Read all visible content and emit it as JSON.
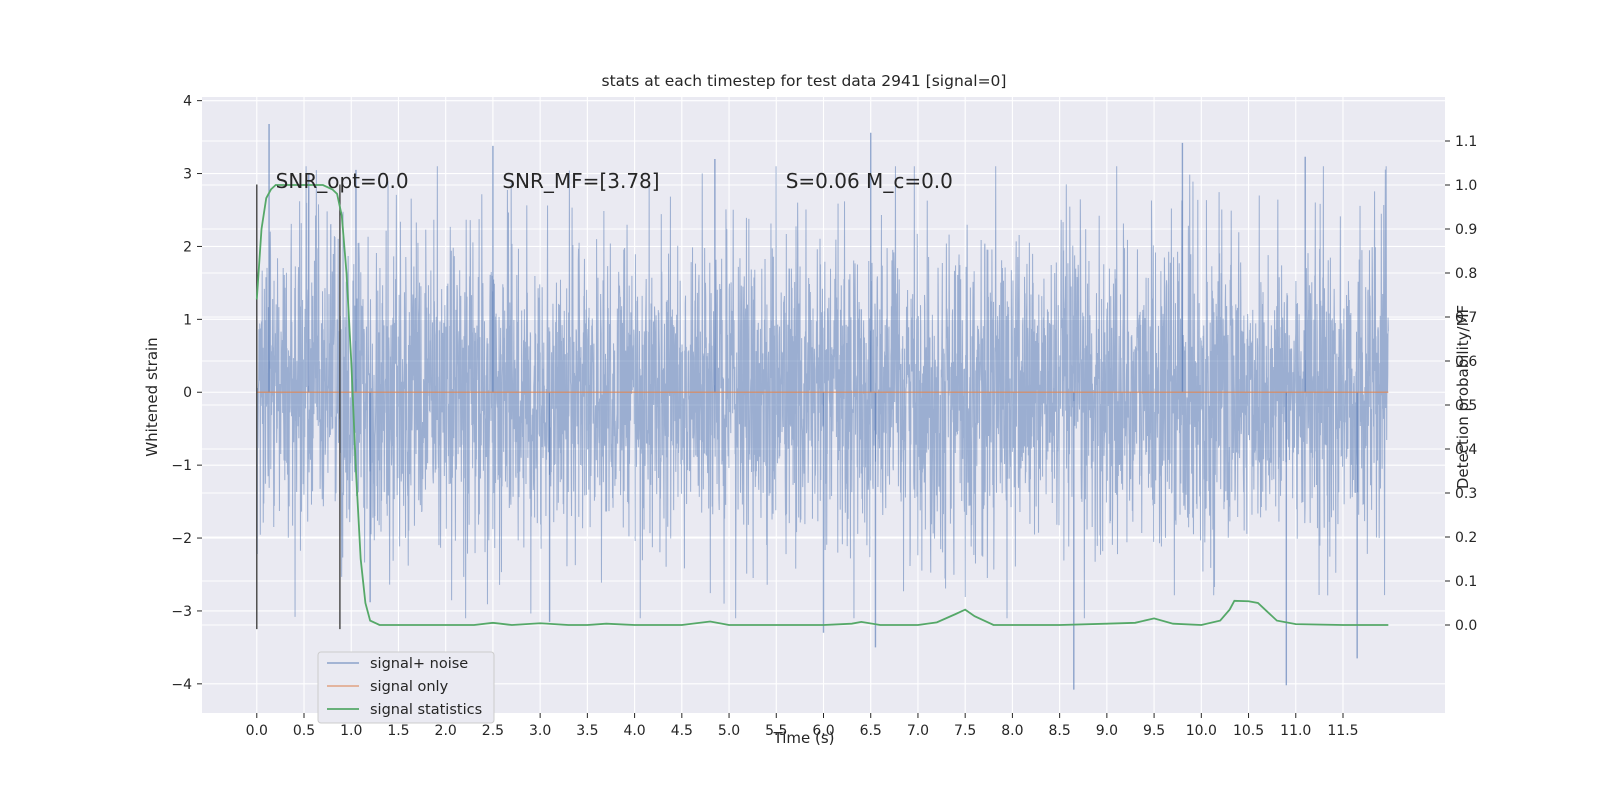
{
  "chart_data": {
    "type": "line",
    "title": "stats at each timestep for test data 2941 [signal=0]",
    "xlabel": "Time (s)",
    "ylabel": "Whitened strain",
    "y2label": "Detection probability/MF",
    "xlim": [
      -0.58,
      12.58
    ],
    "ylim": [
      -4.4,
      4.05
    ],
    "y2lim": [
      -0.2,
      1.2
    ],
    "grid": true,
    "legend_position": "lower-left",
    "x_ticks": [
      0.0,
      0.5,
      1.0,
      1.5,
      2.0,
      2.5,
      3.0,
      3.5,
      4.0,
      4.5,
      5.0,
      5.5,
      6.0,
      6.5,
      7.0,
      7.5,
      8.0,
      8.5,
      9.0,
      9.5,
      10.0,
      10.5,
      11.0,
      11.5
    ],
    "x_tick_labels": [
      "0.0",
      "0.5",
      "1.0",
      "1.5",
      "2.0",
      "2.5",
      "3.0",
      "3.5",
      "4.0",
      "4.5",
      "5.0",
      "5.5",
      "6.0",
      "6.5",
      "7.0",
      "7.5",
      "8.0",
      "8.5",
      "9.0",
      "9.5",
      "10.0",
      "10.5",
      "11.0",
      "11.5"
    ],
    "y_ticks": [
      -4,
      -3,
      -2,
      -1,
      0,
      1,
      2,
      3,
      4
    ],
    "y_tick_labels": [
      "−4",
      "−3",
      "−2",
      "−1",
      "0",
      "1",
      "2",
      "3",
      "4"
    ],
    "y2_ticks": [
      0.0,
      0.1,
      0.2,
      0.3,
      0.4,
      0.5,
      0.6,
      0.7,
      0.8,
      0.9,
      1.0,
      1.1
    ],
    "y2_tick_labels": [
      "0.0",
      "0.1",
      "0.2",
      "0.3",
      "0.4",
      "0.5",
      "0.6",
      "0.7",
      "0.8",
      "0.9",
      "1.0",
      "1.1"
    ],
    "annotations": [
      {
        "text": "SNR_opt=0.0",
        "x": 0.2,
        "y": 2.9
      },
      {
        "text": "SNR_MF=[3.78]",
        "x": 2.6,
        "y": 2.9
      },
      {
        "text": "S=0.06   M_c=0.0",
        "x": 5.6,
        "y": 2.9
      }
    ],
    "vertical_markers": [
      {
        "x": 0.0,
        "y_from": -3.25,
        "y_to": 2.85
      },
      {
        "x": 0.88,
        "y_from": -3.25,
        "y_to": 2.85
      }
    ],
    "series": [
      {
        "name": "signal+ noise",
        "color": "#4c72b0",
        "axis": "left",
        "x_range": [
          0.0,
          11.98
        ],
        "description_points": [
          {
            "x": 0.13,
            "y": 3.68
          },
          {
            "x": 0.55,
            "y": 3.0
          },
          {
            "x": 1.05,
            "y": 3.05
          },
          {
            "x": 2.5,
            "y": 3.38
          },
          {
            "x": 4.85,
            "y": 3.2
          },
          {
            "x": 6.5,
            "y": 3.56
          },
          {
            "x": 9.8,
            "y": 3.42
          },
          {
            "x": 11.1,
            "y": 3.23
          },
          {
            "x": 1.2,
            "y": -2.88
          },
          {
            "x": 3.1,
            "y": -3.15
          },
          {
            "x": 6.0,
            "y": -3.3
          },
          {
            "x": 6.55,
            "y": -3.5
          },
          {
            "x": 8.65,
            "y": -4.08
          },
          {
            "x": 10.9,
            "y": -4.02
          },
          {
            "x": 11.65,
            "y": -3.65
          }
        ]
      },
      {
        "name": "signal only",
        "color": "#dd8452",
        "axis": "left",
        "x": [
          0.0,
          11.98
        ],
        "y": [
          0.0,
          0.0
        ]
      },
      {
        "name": "signal statistics",
        "color": "#55a868",
        "axis": "right",
        "x": [
          0.0,
          0.05,
          0.1,
          0.15,
          0.2,
          0.3,
          0.4,
          0.5,
          0.6,
          0.7,
          0.8,
          0.85,
          0.9,
          0.95,
          1.0,
          1.05,
          1.1,
          1.15,
          1.2,
          1.3,
          1.5,
          2.0,
          2.3,
          2.5,
          2.7,
          3.0,
          3.3,
          3.5,
          3.7,
          4.0,
          4.5,
          4.8,
          5.0,
          5.5,
          6.0,
          6.3,
          6.4,
          6.6,
          7.0,
          7.2,
          7.4,
          7.5,
          7.6,
          7.8,
          8.0,
          8.5,
          9.0,
          9.3,
          9.5,
          9.7,
          10.0,
          10.2,
          10.3,
          10.35,
          10.5,
          10.6,
          10.7,
          10.8,
          11.0,
          11.5,
          11.98
        ],
        "y": [
          0.74,
          0.9,
          0.97,
          0.99,
          1.0,
          1.0,
          1.0,
          1.0,
          1.0,
          1.0,
          0.99,
          0.98,
          0.93,
          0.8,
          0.6,
          0.35,
          0.15,
          0.05,
          0.01,
          0.0,
          0.0,
          0.0,
          0.0,
          0.005,
          0.0,
          0.004,
          0.0,
          0.0,
          0.003,
          0.0,
          0.0,
          0.008,
          0.0,
          0.0,
          0.0,
          0.003,
          0.007,
          0.0,
          0.0,
          0.006,
          0.025,
          0.035,
          0.02,
          0.0,
          0.0,
          0.0,
          0.003,
          0.005,
          0.015,
          0.003,
          0.0,
          0.01,
          0.035,
          0.055,
          0.054,
          0.05,
          0.03,
          0.01,
          0.002,
          0.0,
          0.0
        ]
      }
    ]
  }
}
